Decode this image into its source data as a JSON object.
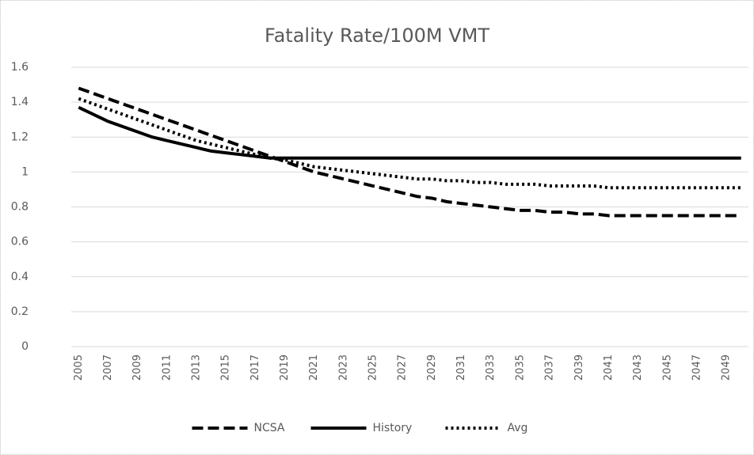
{
  "chart_data": {
    "type": "line",
    "title": "Fatality Rate/100M VMT",
    "x": [
      2005,
      2006,
      2007,
      2008,
      2009,
      2010,
      2011,
      2012,
      2013,
      2014,
      2015,
      2016,
      2017,
      2018,
      2019,
      2020,
      2021,
      2022,
      2023,
      2024,
      2025,
      2026,
      2027,
      2028,
      2029,
      2030,
      2031,
      2032,
      2033,
      2034,
      2035,
      2036,
      2037,
      2038,
      2039,
      2040,
      2041,
      2042,
      2043,
      2044,
      2045,
      2046,
      2047,
      2048,
      2049,
      2050
    ],
    "xlim": [
      2004.5,
      2050.5
    ],
    "xticks": [
      2005,
      2007,
      2009,
      2011,
      2013,
      2015,
      2017,
      2019,
      2021,
      2023,
      2025,
      2027,
      2029,
      2031,
      2033,
      2035,
      2037,
      2039,
      2041,
      2043,
      2045,
      2047,
      2049
    ],
    "ylim": [
      0,
      1.6
    ],
    "yticks": [
      0,
      0.2,
      0.4,
      0.6,
      0.8,
      1,
      1.2,
      1.4,
      1.6
    ],
    "grid": true,
    "legend": "bottom",
    "series": [
      {
        "name": "NCSA",
        "color": "#000000",
        "dash": "dashed",
        "values": [
          1.48,
          1.45,
          1.42,
          1.39,
          1.36,
          1.33,
          1.3,
          1.27,
          1.24,
          1.21,
          1.18,
          1.15,
          1.12,
          1.09,
          1.06,
          1.03,
          1.0,
          0.98,
          0.96,
          0.94,
          0.92,
          0.9,
          0.88,
          0.86,
          0.85,
          0.83,
          0.82,
          0.81,
          0.8,
          0.79,
          0.78,
          0.78,
          0.77,
          0.77,
          0.76,
          0.76,
          0.75,
          0.75,
          0.75,
          0.75,
          0.75,
          0.75,
          0.75,
          0.75,
          0.75,
          0.75
        ]
      },
      {
        "name": "History",
        "color": "#000000",
        "dash": "solid",
        "values": [
          1.37,
          1.33,
          1.29,
          1.26,
          1.23,
          1.2,
          1.18,
          1.16,
          1.14,
          1.12,
          1.11,
          1.1,
          1.09,
          1.08,
          1.08,
          1.08,
          1.08,
          1.08,
          1.08,
          1.08,
          1.08,
          1.08,
          1.08,
          1.08,
          1.08,
          1.08,
          1.08,
          1.08,
          1.08,
          1.08,
          1.08,
          1.08,
          1.08,
          1.08,
          1.08,
          1.08,
          1.08,
          1.08,
          1.08,
          1.08,
          1.08,
          1.08,
          1.08,
          1.08,
          1.08,
          1.08
        ]
      },
      {
        "name": "Avg",
        "color": "#000000",
        "dash": "dotted",
        "values": [
          1.42,
          1.39,
          1.36,
          1.33,
          1.3,
          1.27,
          1.24,
          1.21,
          1.18,
          1.16,
          1.14,
          1.12,
          1.1,
          1.08,
          1.07,
          1.05,
          1.03,
          1.02,
          1.01,
          1.0,
          0.99,
          0.98,
          0.97,
          0.96,
          0.96,
          0.95,
          0.95,
          0.94,
          0.94,
          0.93,
          0.93,
          0.93,
          0.92,
          0.92,
          0.92,
          0.92,
          0.91,
          0.91,
          0.91,
          0.91,
          0.91,
          0.91,
          0.91,
          0.91,
          0.91,
          0.91
        ]
      }
    ]
  }
}
